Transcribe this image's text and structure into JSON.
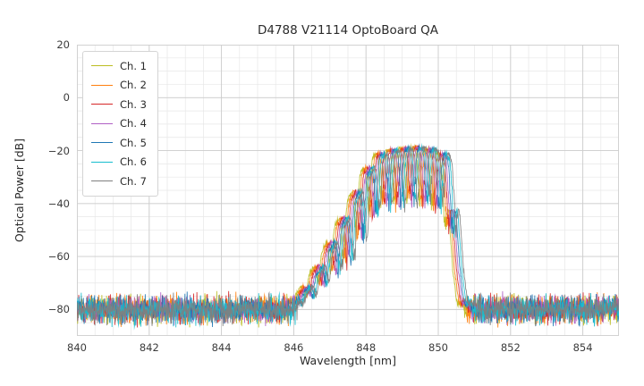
{
  "chart_data": {
    "type": "line",
    "title": "D4788 V21114 OptoBoard QA",
    "xlabel": "Wavelength [nm]",
    "ylabel": "Optical Power [dB]",
    "xlim": [
      840,
      855
    ],
    "ylim": [
      -90,
      20
    ],
    "xticks": [
      840,
      842,
      844,
      846,
      848,
      850,
      852,
      854
    ],
    "yticks": [
      20,
      0,
      -20,
      -40,
      -60,
      -80
    ],
    "minor_x_step": 0.5,
    "minor_y_step": 5,
    "grid": true,
    "grid_color_major": "#cccccc",
    "grid_color_minor": "#e7e7e7",
    "spine_color": "#d0d0d0",
    "text_color": "#3b3b3b",
    "legend_position": "upper left",
    "noise_floor_db": -80,
    "noise_spread_db": 7,
    "mode_spacing_nm": 0.35,
    "mode_depth_db": 19,
    "envelope": [
      [
        840.0,
        -79
      ],
      [
        845.9,
        -79
      ],
      [
        846.1,
        -76
      ],
      [
        846.4,
        -71
      ],
      [
        846.7,
        -64
      ],
      [
        847.0,
        -56
      ],
      [
        847.3,
        -48
      ],
      [
        847.6,
        -40
      ],
      [
        847.9,
        -31
      ],
      [
        848.2,
        -24
      ],
      [
        848.5,
        -20.5
      ],
      [
        849.0,
        -19.5
      ],
      [
        849.5,
        -19.0
      ],
      [
        849.9,
        -20.0
      ],
      [
        850.15,
        -21.5
      ],
      [
        850.3,
        -26
      ],
      [
        850.45,
        -45
      ],
      [
        850.55,
        -65
      ],
      [
        850.7,
        -77
      ],
      [
        851.0,
        -79
      ],
      [
        855.0,
        -79
      ]
    ],
    "series": [
      {
        "name": "Ch. 1",
        "color": "#bcbd22",
        "offset_nm": -0.15
      },
      {
        "name": "Ch. 2",
        "color": "#ff7f0e",
        "offset_nm": -0.1
      },
      {
        "name": "Ch. 3",
        "color": "#d62728",
        "offset_nm": -0.05
      },
      {
        "name": "Ch. 4",
        "color": "#b05fc4",
        "offset_nm": 0.0
      },
      {
        "name": "Ch. 5",
        "color": "#1f77b4",
        "offset_nm": 0.05
      },
      {
        "name": "Ch. 6",
        "color": "#17becf",
        "offset_nm": 0.1
      },
      {
        "name": "Ch. 7",
        "color": "#7f7f7f",
        "offset_nm": 0.15
      }
    ]
  }
}
